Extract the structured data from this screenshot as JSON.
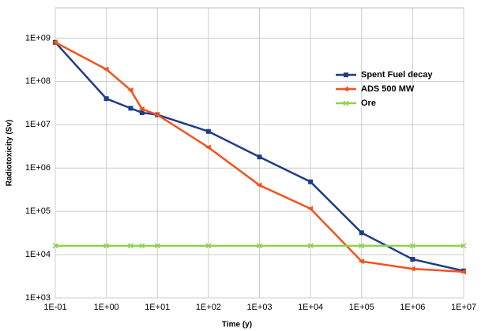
{
  "chart_data": {
    "type": "line",
    "x_label": "Time (y)",
    "y_label": "Radiotoxicity (Sv)",
    "x": [
      0.1,
      1,
      3,
      5,
      10,
      100,
      1000,
      10000,
      100000,
      1000000,
      10000000
    ],
    "series": [
      {
        "name": "Spent Fuel decay",
        "color": "#1f3c88",
        "marker": "square",
        "values": [
          800000000,
          40000000,
          24000000,
          19000000,
          17000000,
          7000000,
          1800000,
          480000,
          32000,
          7800,
          4200
        ]
      },
      {
        "name": "ADS 500 MW",
        "color": "#f4511e",
        "marker": "triangle",
        "values": [
          800000000,
          190000000,
          63000000,
          23000000,
          17000000,
          3000000,
          400000,
          115000,
          7000,
          4700,
          4000
        ]
      },
      {
        "name": "Ore",
        "color": "#8fd14f",
        "marker": "cross",
        "values": [
          16000,
          16000,
          16000,
          16000,
          16000,
          16000,
          16000,
          16000,
          16000,
          16000,
          16000
        ]
      }
    ],
    "xlog": true,
    "ylog": true,
    "xlim": [
      0.1,
      10000000
    ],
    "ylim": [
      1000,
      5000000000
    ],
    "xticks": [
      {
        "value": 0.1,
        "label": "1E-01"
      },
      {
        "value": 1,
        "label": "1E+00"
      },
      {
        "value": 10,
        "label": "1E+01"
      },
      {
        "value": 100,
        "label": "1E+02"
      },
      {
        "value": 1000,
        "label": "1E+03"
      },
      {
        "value": 10000,
        "label": "1E+04"
      },
      {
        "value": 100000,
        "label": "1E+05"
      },
      {
        "value": 1000000,
        "label": "1E+06"
      },
      {
        "value": 10000000,
        "label": "1E+07"
      }
    ],
    "yticks": [
      {
        "value": 1000,
        "label": "1E+03"
      },
      {
        "value": 10000,
        "label": "1E+04"
      },
      {
        "value": 100000,
        "label": "1E+05"
      },
      {
        "value": 1000000,
        "label": "1E+06"
      },
      {
        "value": 10000000,
        "label": "1E+07"
      },
      {
        "value": 100000000,
        "label": "1E+08"
      },
      {
        "value": 1000000000,
        "label": "1E+09"
      }
    ],
    "grid": true,
    "legend": "right"
  }
}
